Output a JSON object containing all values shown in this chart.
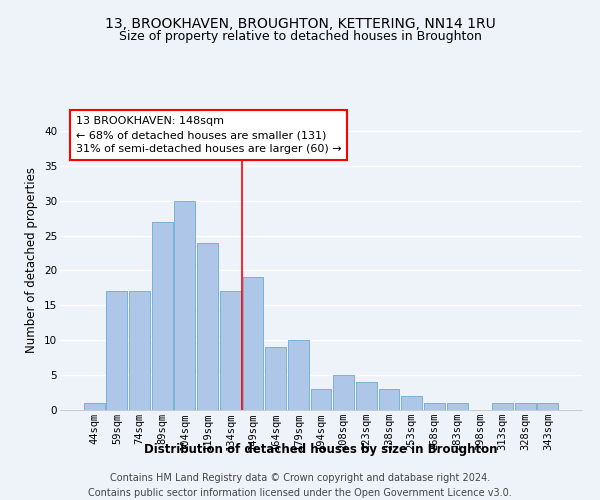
{
  "title": "13, BROOKHAVEN, BROUGHTON, KETTERING, NN14 1RU",
  "subtitle": "Size of property relative to detached houses in Broughton",
  "xlabel": "Distribution of detached houses by size in Broughton",
  "ylabel": "Number of detached properties",
  "footer_line1": "Contains HM Land Registry data © Crown copyright and database right 2024.",
  "footer_line2": "Contains public sector information licensed under the Open Government Licence v3.0.",
  "categories": [
    "44sqm",
    "59sqm",
    "74sqm",
    "89sqm",
    "104sqm",
    "119sqm",
    "134sqm",
    "149sqm",
    "164sqm",
    "179sqm",
    "194sqm",
    "208sqm",
    "223sqm",
    "238sqm",
    "253sqm",
    "268sqm",
    "283sqm",
    "298sqm",
    "313sqm",
    "328sqm",
    "343sqm"
  ],
  "values": [
    1,
    17,
    17,
    27,
    30,
    24,
    17,
    19,
    9,
    10,
    3,
    5,
    4,
    3,
    2,
    1,
    1,
    0,
    1,
    1,
    1
  ],
  "bar_color": "#aec6e8",
  "bar_edge_color": "#6aaad4",
  "annotation_line_bin": 7,
  "annotation_box_text": "13 BROOKHAVEN: 148sqm\n← 68% of detached houses are smaller (131)\n31% of semi-detached houses are larger (60) →",
  "annotation_box_color": "white",
  "annotation_box_edge_color": "red",
  "vline_color": "red",
  "ylim": [
    0,
    43
  ],
  "yticks": [
    0,
    5,
    10,
    15,
    20,
    25,
    30,
    35,
    40
  ],
  "bg_color": "#eef2f9",
  "grid_color": "white",
  "title_fontsize": 10,
  "subtitle_fontsize": 9,
  "axis_label_fontsize": 8.5,
  "tick_fontsize": 7.5,
  "footer_fontsize": 7
}
